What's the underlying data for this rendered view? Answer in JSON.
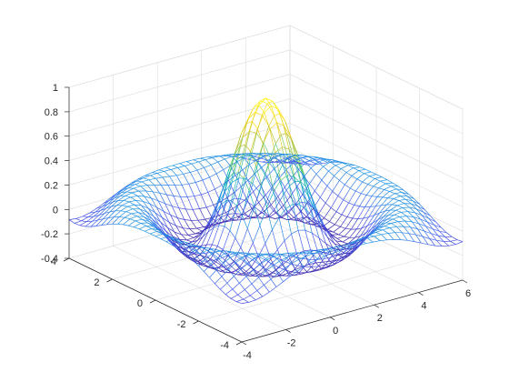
{
  "chart_data": {
    "type": "mesh",
    "title": "",
    "xlabel": "",
    "ylabel": "",
    "zlabel": "",
    "function": "sin(r)/r",
    "x_range": [
      -8,
      8
    ],
    "y_range": [
      -8,
      8
    ],
    "grid_step": 0.5,
    "xlim": [
      -4,
      6
    ],
    "ylim": [
      -4,
      4
    ],
    "zlim": [
      -0.4,
      1
    ],
    "x_ticks": [
      "-4",
      "-2",
      "0",
      "2",
      "4",
      "6"
    ],
    "y_ticks": [
      "-4",
      "-2",
      "0",
      "2",
      "4"
    ],
    "z_ticks": [
      "-0.4",
      "-0.2",
      "0",
      "0.2",
      "0.4",
      "0.6",
      "0.8",
      "1"
    ],
    "peak_z": 1,
    "colormap": [
      "#3e26a8",
      "#4a5fef",
      "#2195e2",
      "#14b5b8",
      "#6ccd6a",
      "#c8c128",
      "#fbdc21",
      "#f9fb0e"
    ],
    "grid": true,
    "view": "default 3-D",
    "background": "#ffffff"
  }
}
